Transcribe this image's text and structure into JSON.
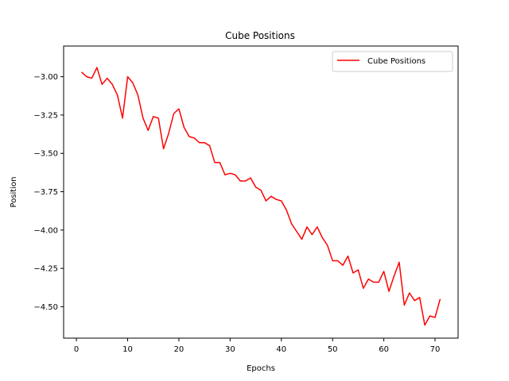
{
  "chart_data": {
    "type": "line",
    "title": "Cube Positions",
    "xlabel": "Epochs",
    "ylabel": "Position",
    "xlim": [
      -2.5,
      74.5
    ],
    "ylim": [
      -4.705,
      -2.8
    ],
    "xticks": [
      0,
      10,
      20,
      30,
      40,
      50,
      60,
      70
    ],
    "yticks": [
      -3.0,
      -3.25,
      -3.5,
      -3.75,
      -4.0,
      -4.25,
      -4.5
    ],
    "ytick_labels": [
      "−3.00",
      "−3.25",
      "−3.50",
      "−3.75",
      "−4.00",
      "−4.25",
      "−4.50"
    ],
    "xtick_labels": [
      "0",
      "10",
      "20",
      "30",
      "40",
      "50",
      "60",
      "70"
    ],
    "grid": false,
    "legend_position": "top-right",
    "series": [
      {
        "name": "Cube Positions",
        "color": "#ff0000",
        "x": [
          1,
          2,
          3,
          4,
          5,
          6,
          7,
          8,
          9,
          10,
          11,
          12,
          13,
          14,
          15,
          16,
          17,
          18,
          19,
          20,
          21,
          22,
          23,
          24,
          25,
          26,
          27,
          28,
          29,
          30,
          31,
          32,
          33,
          34,
          35,
          36,
          37,
          38,
          39,
          40,
          41,
          42,
          43,
          44,
          45,
          46,
          47,
          48,
          49,
          50,
          51,
          52,
          53,
          54,
          55,
          56,
          57,
          58,
          59,
          60,
          61,
          62,
          63,
          64,
          65,
          66,
          67,
          68,
          69,
          70,
          71
        ],
        "values": [
          -2.97,
          -3.0,
          -3.01,
          -2.94,
          -3.05,
          -3.01,
          -3.05,
          -3.12,
          -3.27,
          -3.0,
          -3.04,
          -3.12,
          -3.27,
          -3.35,
          -3.26,
          -3.27,
          -3.47,
          -3.37,
          -3.24,
          -3.21,
          -3.33,
          -3.39,
          -3.4,
          -3.43,
          -3.43,
          -3.45,
          -3.56,
          -3.56,
          -3.64,
          -3.63,
          -3.64,
          -3.68,
          -3.68,
          -3.66,
          -3.72,
          -3.74,
          -3.81,
          -3.78,
          -3.8,
          -3.81,
          -3.87,
          -3.96,
          -4.01,
          -4.06,
          -3.98,
          -4.03,
          -3.98,
          -4.05,
          -4.1,
          -4.2,
          -4.2,
          -4.23,
          -4.17,
          -4.28,
          -4.26,
          -4.38,
          -4.32,
          -4.34,
          -4.34,
          -4.27,
          -4.4,
          -4.3,
          -4.21,
          -4.49,
          -4.41,
          -4.46,
          -4.44,
          -4.62,
          -4.56,
          -4.57,
          -4.45
        ]
      }
    ]
  }
}
